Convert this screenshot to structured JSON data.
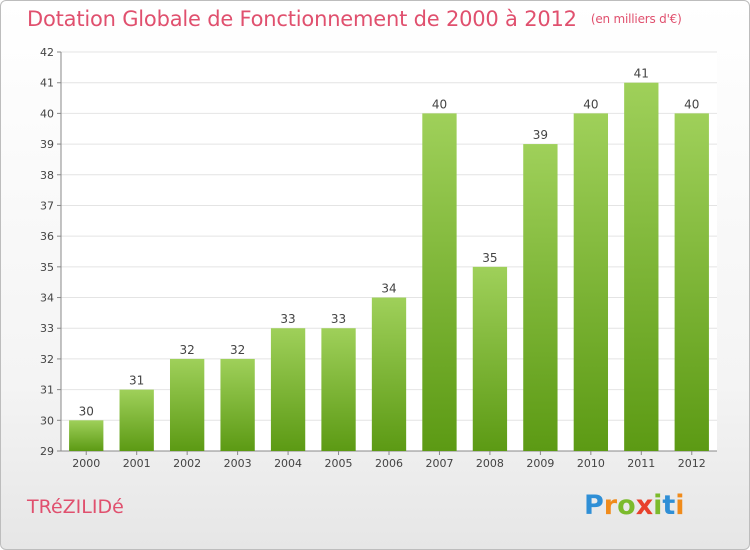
{
  "header": {
    "title": "Dotation Globale de Fonctionnement de 2000 à 2012",
    "unit": "(en milliers d'€)"
  },
  "footer": {
    "commune": "TRéZILIDé",
    "logo": {
      "parts": [
        "P",
        "r",
        "o",
        "x",
        "i",
        "t",
        "i"
      ],
      "colors": [
        "#2f8fd6",
        "#f08b1b",
        "#7cbb2c",
        "#e8412c",
        "#7cbb2c",
        "#2f8fd6",
        "#f08b1b"
      ]
    }
  },
  "colors": {
    "title": "#e0506e",
    "bar_light": "#9fd05a",
    "bar_dark": "#5c9a14",
    "grid": "#e4e4e4"
  },
  "chart_data": {
    "type": "bar",
    "title": "Dotation Globale de Fonctionnement de 2000 à 2012",
    "subtitle": "(en milliers d'€)",
    "xlabel": "",
    "ylabel": "",
    "categories": [
      "2000",
      "2001",
      "2002",
      "2003",
      "2004",
      "2005",
      "2006",
      "2007",
      "2008",
      "2009",
      "2010",
      "2011",
      "2012"
    ],
    "values": [
      30,
      31,
      32,
      32,
      33,
      33,
      34,
      40,
      35,
      39,
      40,
      41,
      40
    ],
    "data_labels": [
      "30",
      "31",
      "32",
      "32",
      "33",
      "33",
      "34",
      "40",
      "35",
      "39",
      "40",
      "41",
      "40"
    ],
    "ylim": [
      29,
      42
    ],
    "yticks": [
      29,
      30,
      31,
      32,
      33,
      34,
      35,
      36,
      37,
      38,
      39,
      40,
      41,
      42
    ],
    "grid": true,
    "legend": "none"
  }
}
